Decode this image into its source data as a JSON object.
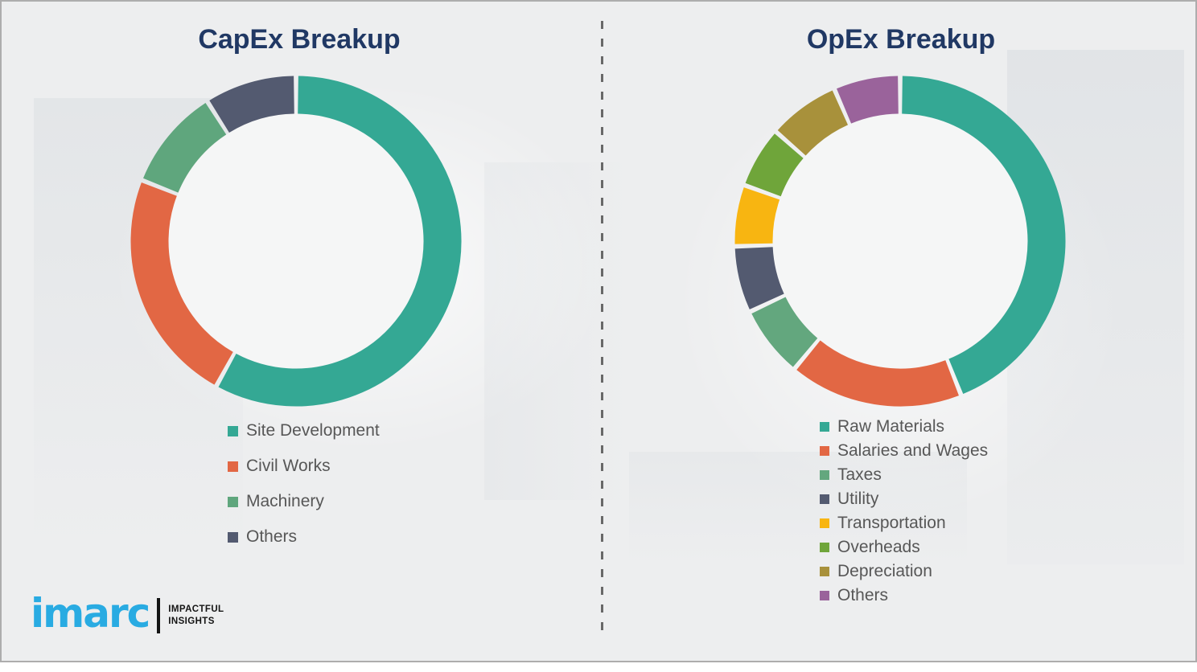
{
  "theme": {
    "background": "#edeeef",
    "title_color": "#203864",
    "legend_text_color": "#575757",
    "divider_color": "#686868",
    "donut_hole_color": "#f5f6f6",
    "brand_blue": "#29abe2"
  },
  "chart_data": [
    {
      "type": "pie",
      "donut": true,
      "title": "CapEx Breakup",
      "categories": [
        "Site Development",
        "Civil Works",
        "Machinery",
        "Others"
      ],
      "values": [
        58,
        23,
        10,
        9
      ],
      "colors": [
        "#34a894",
        "#e26744",
        "#5fa67d",
        "#535a70"
      ],
      "legend_position": "below-left",
      "data_labels": "none"
    },
    {
      "type": "pie",
      "donut": true,
      "title": "OpEx Breakup",
      "categories": [
        "Raw Materials",
        "Salaries and Wages",
        "Taxes",
        "Utility",
        "Transportation",
        "Overheads",
        "Depreciation",
        "Others"
      ],
      "values": [
        44,
        17,
        7,
        6.5,
        6,
        6,
        7,
        6.5
      ],
      "colors": [
        "#34a894",
        "#e26744",
        "#63a77e",
        "#535a70",
        "#f8b511",
        "#6fa53a",
        "#a8913b",
        "#9a639b"
      ],
      "legend_position": "below-left",
      "data_labels": "none"
    }
  ],
  "logo": {
    "brand": "imarc",
    "tagline_line1": "IMPACTFUL",
    "tagline_line2": "INSIGHTS"
  }
}
